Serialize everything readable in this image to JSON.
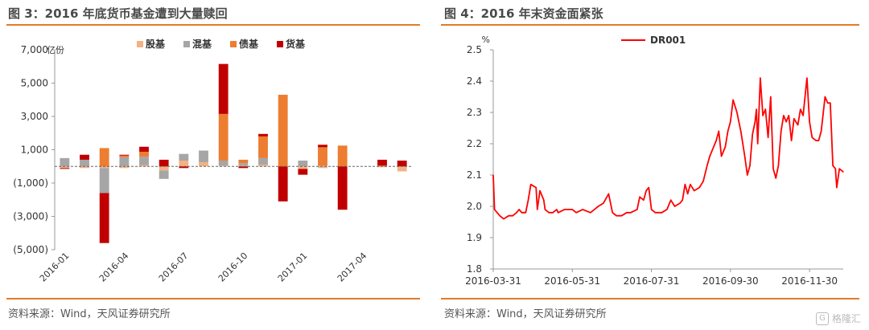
{
  "left": {
    "title": "图 3：2016 年底货币基金遭到大量赎回",
    "source": "资料来源：Wind，天风证券研究所"
  },
  "right": {
    "title": "图 4：2016 年末资金面紧张",
    "source": "资料来源：Wind，天风证券研究所"
  },
  "watermark": "格隆汇",
  "colors": {
    "accent": "#e07b29",
    "equity": "#f4b183",
    "mixed": "#a6a6a6",
    "bond": "#ed7d31",
    "money": "#c00000",
    "dr001": "#ff0000"
  },
  "chart_data": [
    {
      "type": "bar",
      "stacked": true,
      "unit_label": "亿份",
      "ylim": [
        -5000,
        7000
      ],
      "yticks": [
        7000,
        5000,
        3000,
        1000,
        -1000,
        -3000,
        -5000
      ],
      "ytick_labels": [
        "7,000",
        "5,000",
        "3,000",
        "1,000",
        "(1,000)",
        "(3,000)",
        "(5,000)"
      ],
      "categories": [
        "2016-01",
        "2016-02",
        "2016-03",
        "2016-04",
        "2016-05",
        "2016-06",
        "2016-07",
        "2016-08",
        "2016-09",
        "2016-10",
        "2016-11",
        "2016-12",
        "2017-01",
        "2017-02",
        "2017-03",
        "2017-04",
        "2017-05",
        "2017-06"
      ],
      "xtick_labels": [
        {
          "index": 0,
          "label": "2016-01"
        },
        {
          "index": 3,
          "label": "2016-04"
        },
        {
          "index": 6,
          "label": "2016-07"
        },
        {
          "index": 9,
          "label": "2016-10"
        },
        {
          "index": 12,
          "label": "2017-01"
        },
        {
          "index": 15,
          "label": "2017-04"
        }
      ],
      "legend_position": "top",
      "series": [
        {
          "name": "股基",
          "color_key": "equity",
          "values": [
            -100,
            -100,
            -100,
            -100,
            80,
            -250,
            350,
            250,
            50,
            50,
            100,
            0,
            -150,
            -100,
            0,
            0,
            -50,
            -300
          ]
        },
        {
          "name": "混基",
          "color_key": "mixed",
          "values": [
            500,
            400,
            -1500,
            550,
            500,
            -500,
            400,
            700,
            300,
            150,
            400,
            0,
            350,
            50,
            0,
            0,
            0,
            0
          ]
        },
        {
          "name": "债基",
          "color_key": "bond",
          "values": [
            0,
            0,
            1100,
            100,
            300,
            0,
            0,
            0,
            2800,
            200,
            1300,
            4300,
            0,
            1100,
            1250,
            0,
            50,
            0
          ]
        },
        {
          "name": "货基",
          "color_key": "money",
          "values": [
            -50,
            300,
            -3000,
            50,
            300,
            400,
            -100,
            0,
            3000,
            -100,
            150,
            -2100,
            -350,
            150,
            -2600,
            0,
            350,
            350
          ]
        }
      ]
    },
    {
      "type": "line",
      "ylabel": "%",
      "ylim": [
        1.8,
        2.5
      ],
      "yticks": [
        1.8,
        1.9,
        2.0,
        2.1,
        2.2,
        2.3,
        2.4,
        2.5
      ],
      "ytick_labels": [
        "1.8",
        "1.9",
        "2.0",
        "2.1",
        "2.2",
        "2.3",
        "2.4",
        "2.5"
      ],
      "x_range": [
        "2016-03-31",
        "2016-12-26"
      ],
      "xtick_labels": [
        "2016-03-31",
        "2016-05-31",
        "2016-07-31",
        "2016-09-30",
        "2016-11-30"
      ],
      "legend_position": "top",
      "series": [
        {
          "name": "DR001",
          "color_key": "dr001",
          "points": [
            [
              "2016-03-31",
              2.1
            ],
            [
              "2016-04-01",
              1.99
            ],
            [
              "2016-04-05",
              1.97
            ],
            [
              "2016-04-08",
              1.96
            ],
            [
              "2016-04-12",
              1.97
            ],
            [
              "2016-04-15",
              1.97
            ],
            [
              "2016-04-18",
              1.98
            ],
            [
              "2016-04-20",
              1.99
            ],
            [
              "2016-04-22",
              1.98
            ],
            [
              "2016-04-25",
              1.98
            ],
            [
              "2016-04-27",
              2.02
            ],
            [
              "2016-04-29",
              2.07
            ],
            [
              "2016-05-03",
              2.06
            ],
            [
              "2016-05-04",
              1.99
            ],
            [
              "2016-05-06",
              2.05
            ],
            [
              "2016-05-09",
              2.02
            ],
            [
              "2016-05-10",
              1.99
            ],
            [
              "2016-05-13",
              1.98
            ],
            [
              "2016-05-16",
              1.98
            ],
            [
              "2016-05-19",
              1.99
            ],
            [
              "2016-05-20",
              1.98
            ],
            [
              "2016-05-25",
              1.99
            ],
            [
              "2016-05-31",
              1.99
            ],
            [
              "2016-06-03",
              1.98
            ],
            [
              "2016-06-08",
              1.99
            ],
            [
              "2016-06-14",
              1.98
            ],
            [
              "2016-06-17",
              1.99
            ],
            [
              "2016-06-20",
              2.0
            ],
            [
              "2016-06-24",
              2.01
            ],
            [
              "2016-06-28",
              2.04
            ],
            [
              "2016-06-30",
              2.0
            ],
            [
              "2016-07-01",
              1.98
            ],
            [
              "2016-07-04",
              1.97
            ],
            [
              "2016-07-08",
              1.97
            ],
            [
              "2016-07-12",
              1.98
            ],
            [
              "2016-07-15",
              1.98
            ],
            [
              "2016-07-20",
              1.99
            ],
            [
              "2016-07-22",
              2.03
            ],
            [
              "2016-07-25",
              2.02
            ],
            [
              "2016-07-27",
              2.05
            ],
            [
              "2016-07-29",
              2.06
            ],
            [
              "2016-07-31",
              1.99
            ],
            [
              "2016-08-03",
              1.98
            ],
            [
              "2016-08-08",
              1.98
            ],
            [
              "2016-08-12",
              1.99
            ],
            [
              "2016-08-15",
              2.02
            ],
            [
              "2016-08-18",
              2.0
            ],
            [
              "2016-08-22",
              2.01
            ],
            [
              "2016-08-24",
              2.02
            ],
            [
              "2016-08-26",
              2.07
            ],
            [
              "2016-08-28",
              2.04
            ],
            [
              "2016-08-30",
              2.07
            ],
            [
              "2016-09-02",
              2.05
            ],
            [
              "2016-09-06",
              2.06
            ],
            [
              "2016-09-09",
              2.08
            ],
            [
              "2016-09-12",
              2.13
            ],
            [
              "2016-09-14",
              2.16
            ],
            [
              "2016-09-16",
              2.18
            ],
            [
              "2016-09-19",
              2.21
            ],
            [
              "2016-09-21",
              2.24
            ],
            [
              "2016-09-23",
              2.16
            ],
            [
              "2016-09-26",
              2.19
            ],
            [
              "2016-09-28",
              2.24
            ],
            [
              "2016-09-30",
              2.27
            ],
            [
              "2016-10-02",
              2.34
            ],
            [
              "2016-10-05",
              2.3
            ],
            [
              "2016-10-08",
              2.24
            ],
            [
              "2016-10-11",
              2.16
            ],
            [
              "2016-10-13",
              2.1
            ],
            [
              "2016-10-15",
              2.13
            ],
            [
              "2016-10-17",
              2.23
            ],
            [
              "2016-10-19",
              2.27
            ],
            [
              "2016-10-20",
              2.31
            ],
            [
              "2016-10-21",
              2.2
            ],
            [
              "2016-10-23",
              2.41
            ],
            [
              "2016-10-25",
              2.29
            ],
            [
              "2016-10-27",
              2.31
            ],
            [
              "2016-10-29",
              2.22
            ],
            [
              "2016-10-31",
              2.35
            ],
            [
              "2016-11-02",
              2.12
            ],
            [
              "2016-11-04",
              2.09
            ],
            [
              "2016-11-06",
              2.13
            ],
            [
              "2016-11-08",
              2.24
            ],
            [
              "2016-11-10",
              2.29
            ],
            [
              "2016-11-12",
              2.27
            ],
            [
              "2016-11-14",
              2.29
            ],
            [
              "2016-11-16",
              2.21
            ],
            [
              "2016-11-18",
              2.28
            ],
            [
              "2016-11-21",
              2.26
            ],
            [
              "2016-11-23",
              2.31
            ],
            [
              "2016-11-25",
              2.29
            ],
            [
              "2016-11-28",
              2.41
            ],
            [
              "2016-11-30",
              2.27
            ],
            [
              "2016-12-02",
              2.22
            ],
            [
              "2016-12-05",
              2.21
            ],
            [
              "2016-12-07",
              2.21
            ],
            [
              "2016-12-09",
              2.24
            ],
            [
              "2016-12-12",
              2.35
            ],
            [
              "2016-12-14",
              2.33
            ],
            [
              "2016-12-16",
              2.33
            ],
            [
              "2016-12-18",
              2.13
            ],
            [
              "2016-12-20",
              2.12
            ],
            [
              "2016-12-21",
              2.06
            ],
            [
              "2016-12-23",
              2.12
            ],
            [
              "2016-12-26",
              2.11
            ]
          ]
        }
      ]
    }
  ]
}
